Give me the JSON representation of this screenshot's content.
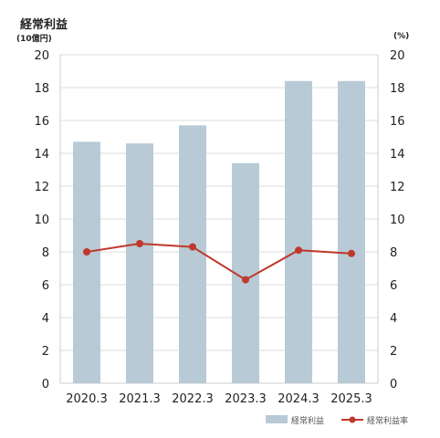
{
  "title": "経常利益",
  "unit_left": "(10億円)",
  "unit_right": "(%)",
  "colors": {
    "bar": "#b7cad6",
    "line": "#c0392b",
    "grid": "#dddddd",
    "axis": "#cccccc",
    "text": "#222222"
  },
  "chart_data": {
    "type": "bar",
    "categories": [
      "2020.3",
      "2021.3",
      "2022.3",
      "2023.3",
      "2024.3",
      "2025.3"
    ],
    "series": [
      {
        "name": "経常利益",
        "type": "bar",
        "axis": "left",
        "values": [
          14.7,
          14.6,
          15.7,
          13.4,
          18.4,
          18.4
        ]
      },
      {
        "name": "経常利益率",
        "type": "line",
        "axis": "right",
        "values": [
          8.0,
          8.5,
          8.3,
          6.3,
          8.1,
          7.9
        ]
      }
    ],
    "ylim_left": [
      0,
      20
    ],
    "ylim_right": [
      0,
      20
    ],
    "yticks": [
      0,
      2,
      4,
      6,
      8,
      10,
      12,
      14,
      16,
      18,
      20
    ],
    "grid": true,
    "legend_position": "bottom-right"
  }
}
